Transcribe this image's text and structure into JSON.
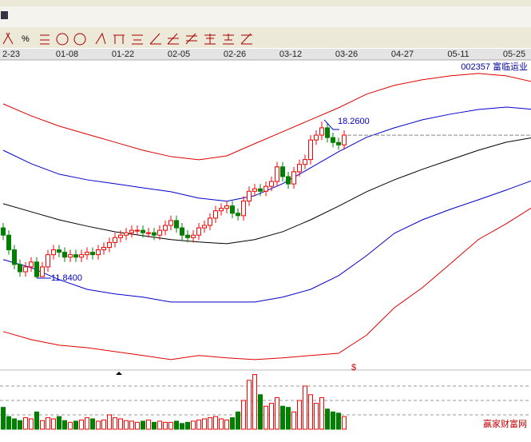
{
  "chart_data": {
    "type": "candlestick",
    "title": "002357 富临运业",
    "toolbar_symbol": "%",
    "event_marker": "$",
    "watermark": "赢家财富网",
    "date_labels": [
      "2-23",
      "01-08",
      "01-22",
      "02-05",
      "02-26",
      "03-12",
      "03-26",
      "04-27",
      "05-11",
      "05-25"
    ],
    "high_label": "18.2600",
    "low_label": "11.8400",
    "up_color": "#ff0000",
    "down_color": "#008000",
    "open": [
      13.9,
      13.6,
      13.0,
      12.4,
      12.1,
      12.3,
      12.5,
      11.9,
      12.3,
      12.8,
      13.0,
      12.9,
      12.7,
      12.8,
      12.7,
      12.8,
      12.9,
      12.8,
      13.0,
      13.1,
      13.3,
      13.5,
      13.6,
      13.7,
      13.8,
      13.8,
      13.7,
      13.7,
      13.6,
      13.8,
      14.0,
      14.2,
      13.9,
      13.6,
      13.5,
      13.6,
      13.9,
      14.0,
      14.3,
      14.6,
      14.7,
      14.8,
      14.5,
      14.4,
      15.0,
      15.4,
      15.5,
      15.4,
      15.6,
      15.8,
      16.4,
      16.0,
      15.7,
      16.2,
      16.5,
      16.7,
      17.5,
      17.7,
      18.0,
      17.6,
      17.4,
      17.3
    ],
    "high": [
      14.1,
      13.8,
      13.2,
      12.6,
      12.5,
      12.7,
      12.7,
      12.5,
      13.0,
      13.2,
      13.2,
      13.1,
      13.0,
      13.0,
      13.0,
      13.1,
      13.1,
      13.2,
      13.3,
      13.5,
      13.7,
      13.8,
      13.9,
      14.0,
      14.0,
      14.0,
      13.9,
      13.9,
      14.0,
      14.2,
      14.4,
      14.4,
      14.1,
      13.8,
      13.8,
      14.1,
      14.2,
      14.5,
      14.8,
      14.9,
      15.0,
      15.0,
      14.7,
      15.2,
      15.6,
      15.7,
      15.7,
      15.8,
      16.0,
      16.6,
      16.6,
      16.2,
      16.4,
      16.7,
      16.9,
      17.7,
      17.9,
      18.26,
      18.2,
      17.8,
      17.6,
      17.9
    ],
    "low": [
      13.4,
      12.8,
      12.2,
      11.9,
      11.9,
      12.1,
      11.84,
      11.88,
      12.1,
      12.6,
      12.7,
      12.5,
      12.5,
      12.5,
      12.5,
      12.6,
      12.6,
      12.6,
      12.8,
      12.9,
      13.1,
      13.3,
      13.4,
      13.5,
      13.6,
      13.5,
      13.5,
      13.4,
      13.4,
      13.6,
      13.8,
      13.7,
      13.4,
      13.3,
      13.3,
      13.4,
      13.7,
      13.8,
      14.1,
      14.4,
      14.5,
      14.3,
      14.2,
      14.2,
      14.8,
      15.2,
      15.2,
      15.2,
      15.4,
      15.6,
      15.8,
      15.5,
      15.5,
      16.0,
      16.3,
      16.5,
      17.3,
      17.5,
      17.4,
      17.2,
      17.1,
      17.1
    ],
    "close": [
      13.6,
      13.0,
      12.4,
      12.1,
      12.3,
      12.5,
      11.9,
      12.3,
      12.8,
      13.0,
      12.9,
      12.7,
      12.8,
      12.7,
      12.8,
      12.9,
      12.8,
      13.0,
      13.1,
      13.3,
      13.5,
      13.6,
      13.7,
      13.8,
      13.8,
      13.7,
      13.7,
      13.6,
      13.8,
      14.0,
      14.2,
      13.9,
      13.6,
      13.5,
      13.6,
      13.9,
      14.0,
      14.3,
      14.6,
      14.7,
      14.8,
      14.5,
      14.4,
      15.0,
      15.4,
      15.5,
      15.4,
      15.6,
      15.8,
      16.4,
      16.0,
      15.7,
      16.2,
      16.5,
      16.7,
      17.5,
      17.7,
      18.0,
      17.6,
      17.4,
      17.3,
      17.7
    ],
    "volume": [
      38,
      22,
      18,
      15,
      20,
      18,
      30,
      15,
      20,
      18,
      22,
      15,
      12,
      14,
      16,
      20,
      18,
      14,
      16,
      25,
      20,
      18,
      15,
      14,
      12,
      14,
      16,
      12,
      14,
      12,
      12,
      14,
      10,
      12,
      14,
      16,
      18,
      20,
      22,
      18,
      16,
      20,
      30,
      50,
      85,
      95,
      60,
      40,
      45,
      55,
      40,
      38,
      30,
      50,
      75,
      60,
      45,
      55,
      35,
      30,
      28,
      22
    ],
    "ylim": [
      8.17,
      20.29
    ],
    "volume_ylim": [
      0,
      100
    ],
    "volume_yticks": [
      25,
      50,
      75
    ],
    "band_x": [
      0,
      5,
      10,
      15,
      20,
      25,
      30,
      35,
      40,
      45,
      50,
      55,
      60,
      65,
      70,
      75,
      80,
      85,
      90,
      95
    ],
    "bands": [
      {
        "color": "#e00000",
        "values": [
          18.98,
          18.49,
          18.07,
          17.74,
          17.41,
          17.08,
          16.82,
          16.69,
          16.85,
          17.35,
          17.84,
          18.33,
          18.82,
          19.38,
          19.74,
          19.97,
          20.13,
          20.23,
          20.13,
          19.87
        ]
      },
      {
        "color": "#0000cc",
        "values": [
          17.08,
          16.53,
          16.1,
          15.87,
          15.71,
          15.54,
          15.38,
          15.12,
          14.99,
          15.22,
          15.71,
          16.36,
          17.02,
          17.61,
          18.0,
          18.33,
          18.56,
          18.75,
          18.85,
          18.75
        ]
      },
      {
        "color": "#000000",
        "values": [
          14.89,
          14.56,
          14.23,
          13.97,
          13.74,
          13.58,
          13.42,
          13.32,
          13.25,
          13.42,
          13.74,
          14.23,
          14.79,
          15.38,
          15.87,
          16.3,
          16.69,
          17.08,
          17.41,
          17.61
        ]
      },
      {
        "color": "#0000cc",
        "values": [
          12.6,
          12.27,
          11.78,
          11.38,
          11.19,
          11.06,
          10.86,
          10.86,
          10.86,
          10.86,
          11.06,
          11.38,
          11.94,
          12.76,
          13.68,
          14.23,
          14.66,
          15.05,
          15.45,
          15.87
        ]
      },
      {
        "color": "#e00000",
        "values": [
          9.65,
          9.32,
          9.09,
          8.99,
          8.83,
          8.67,
          8.5,
          8.67,
          8.57,
          8.5,
          8.57,
          8.67,
          8.76,
          9.5,
          10.63,
          11.45,
          12.43,
          13.42,
          14.07,
          14.79
        ]
      }
    ]
  }
}
